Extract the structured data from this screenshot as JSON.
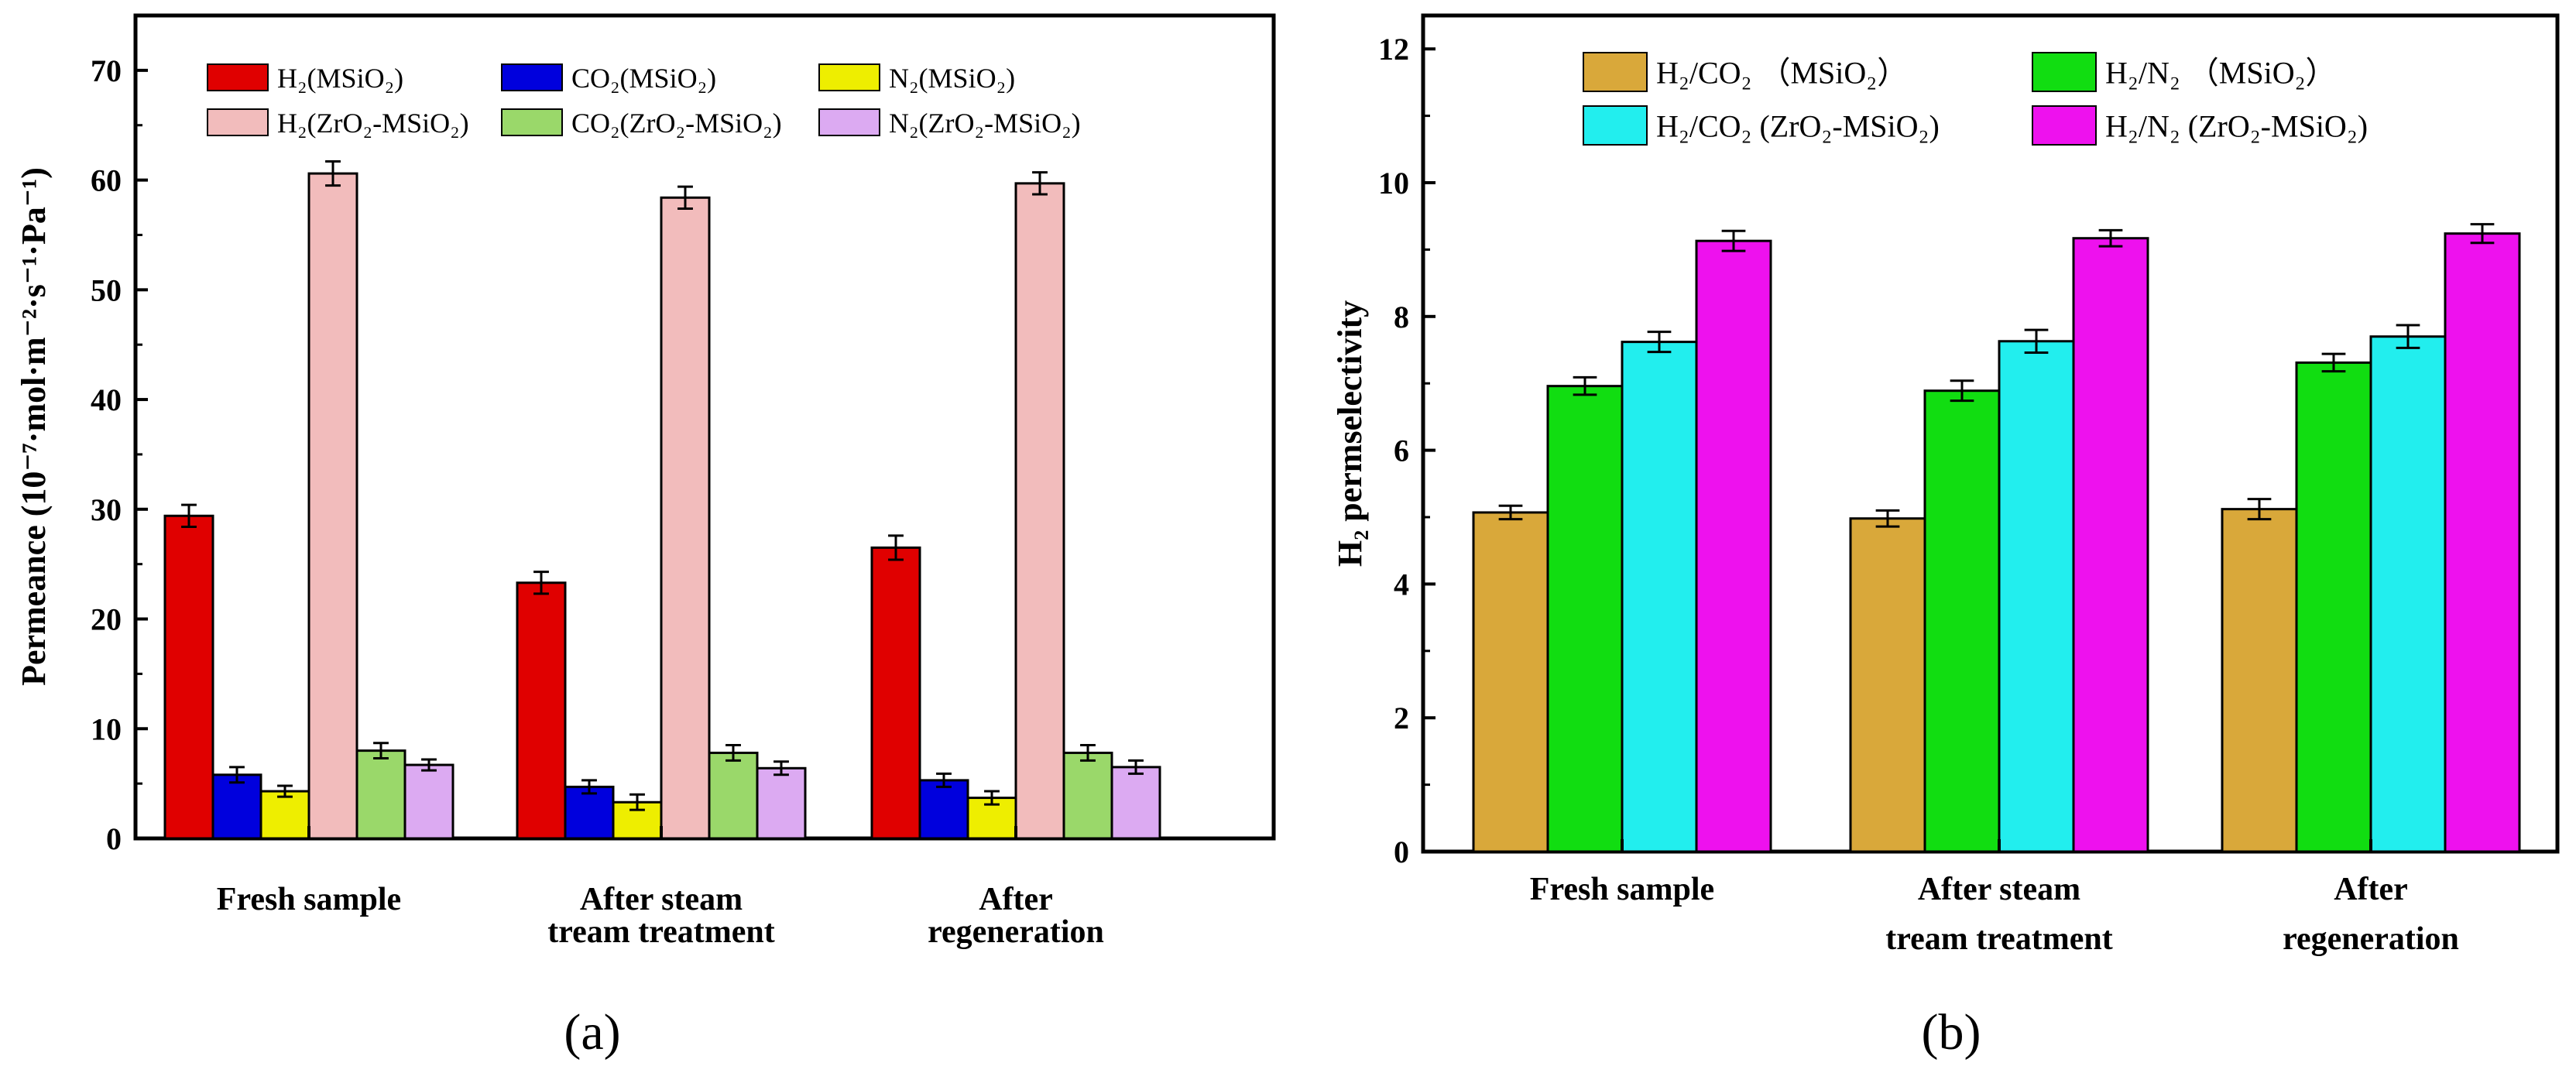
{
  "chart_data": [
    {
      "panel": "(a)",
      "type": "bar",
      "ylabel": "Permeance (10⁻⁷·mol·m⁻²·s⁻¹·Pa⁻¹)",
      "ylim": [
        0,
        75
      ],
      "yticks": [
        0,
        10,
        20,
        30,
        40,
        50,
        60,
        70
      ],
      "categories": [
        [
          "Fresh sample"
        ],
        [
          "After steam",
          "tream treatment"
        ],
        [
          "After",
          "regeneration"
        ]
      ],
      "series": [
        {
          "name": "H₂(MSiO₂)",
          "color": "#e00000",
          "values": [
            29.4,
            23.3,
            26.5
          ],
          "errors": [
            1.0,
            1.0,
            1.1
          ]
        },
        {
          "name": "CO₂(MSiO₂)",
          "color": "#0000dd",
          "values": [
            5.8,
            4.7,
            5.3
          ],
          "errors": [
            0.7,
            0.6,
            0.6
          ]
        },
        {
          "name": "N₂(MSiO₂)",
          "color": "#eeee00",
          "values": [
            4.3,
            3.3,
            3.7
          ],
          "errors": [
            0.5,
            0.7,
            0.6
          ]
        },
        {
          "name": "H₂(ZrO₂-MSiO₂)",
          "color": "#f2bcbc",
          "values": [
            60.6,
            58.4,
            59.7
          ],
          "errors": [
            1.1,
            1.0,
            1.0
          ]
        },
        {
          "name": "CO₂(ZrO₂-MSiO₂)",
          "color": "#9ad86a",
          "values": [
            8.0,
            7.8,
            7.8
          ],
          "errors": [
            0.7,
            0.7,
            0.7
          ]
        },
        {
          "name": "N₂(ZrO₂-MSiO₂)",
          "color": "#dcaaf2",
          "values": [
            6.7,
            6.4,
            6.5
          ],
          "errors": [
            0.5,
            0.6,
            0.6
          ]
        }
      ]
    },
    {
      "panel": "(b)",
      "type": "bar",
      "ylabel": "H₂ permselectivity",
      "ylim": [
        0,
        12.5
      ],
      "yticks": [
        0,
        2,
        4,
        6,
        8,
        10,
        12
      ],
      "categories": [
        [
          "Fresh sample"
        ],
        [
          "After steam",
          "tream treatment"
        ],
        [
          "After",
          "regeneration"
        ]
      ],
      "series": [
        {
          "name": "H₂/CO₂ （MSiO₂）",
          "color": "#d9a83a",
          "values": [
            5.07,
            4.98,
            5.12
          ],
          "errors": [
            0.1,
            0.12,
            0.15
          ]
        },
        {
          "name": "H₂/N₂ （MSiO₂）",
          "color": "#11dd11",
          "values": [
            6.96,
            6.89,
            7.31
          ],
          "errors": [
            0.13,
            0.15,
            0.13
          ]
        },
        {
          "name": "H₂/CO₂ (ZrO₂-MSiO₂)",
          "color": "#22eeee",
          "values": [
            7.62,
            7.63,
            7.7
          ],
          "errors": [
            0.15,
            0.17,
            0.17
          ]
        },
        {
          "name": "H₂/N₂ (ZrO₂-MSiO₂)",
          "color": "#ee11ee",
          "values": [
            9.13,
            9.17,
            9.24
          ],
          "errors": [
            0.15,
            0.12,
            0.14
          ]
        }
      ]
    }
  ]
}
